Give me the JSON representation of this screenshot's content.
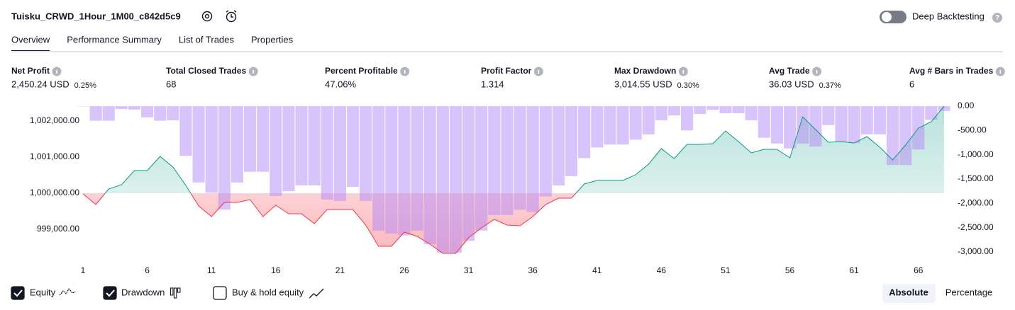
{
  "header": {
    "title": "Tuisku_CRWD_1Hour_1M00_c842d5c9",
    "deep_backtesting": "Deep Backtesting"
  },
  "tabs": [
    "Overview",
    "Performance Summary",
    "List of Trades",
    "Properties"
  ],
  "metrics": [
    {
      "label": "Net Profit",
      "value": "2,450.24 USD",
      "percent": "0.25%",
      "color": "#089981"
    },
    {
      "label": "Total Closed Trades",
      "value": "68",
      "color": "#131722"
    },
    {
      "label": "Percent Profitable",
      "value": "47.06%",
      "color": "#089981"
    },
    {
      "label": "Profit Factor",
      "value": "1.314",
      "color": "#089981"
    },
    {
      "label": "Max Drawdown",
      "value": "3,014.55 USD",
      "percent": "0.30%",
      "color": "#f23645"
    },
    {
      "label": "Avg Trade",
      "value": "36.03 USD",
      "percent": "0.37%",
      "color": "#089981"
    },
    {
      "label": "Avg # Bars in Trades",
      "value": "6",
      "color": "#131722"
    }
  ],
  "chart_data": {
    "type": "combo",
    "x": [
      1,
      2,
      3,
      4,
      5,
      6,
      7,
      8,
      9,
      10,
      11,
      12,
      13,
      14,
      15,
      16,
      17,
      18,
      19,
      20,
      21,
      22,
      23,
      24,
      25,
      26,
      27,
      28,
      29,
      30,
      31,
      32,
      33,
      34,
      35,
      36,
      37,
      38,
      39,
      40,
      41,
      42,
      43,
      44,
      45,
      46,
      47,
      48,
      49,
      50,
      51,
      52,
      53,
      54,
      55,
      56,
      57,
      58,
      59,
      60,
      61,
      62,
      63,
      64,
      65,
      66,
      67,
      68
    ],
    "series": [
      {
        "name": "Equity",
        "color": "#089981",
        "negative_color": "#f23645",
        "values": [
          999980,
          999686,
          1000118,
          1000235,
          1000627,
          1000627,
          1001020,
          1000725,
          1000216,
          999647,
          999353,
          999745,
          999745,
          999824,
          999353,
          999667,
          999431,
          999431,
          999157,
          999549,
          999549,
          999549,
          999118,
          998529,
          998529,
          998922,
          998804,
          998588,
          998333,
          998333,
          998765,
          999039,
          999274,
          999118,
          999098,
          999353,
          999686,
          999863,
          999863,
          1000255,
          1000353,
          1000353,
          1000353,
          1000510,
          1000804,
          1001235,
          1000961,
          1001353,
          1001353,
          1001373,
          1001725,
          1001431,
          1001118,
          1001216,
          1001216,
          1000980,
          1002118,
          1001765,
          1001412,
          1001431,
          1001392,
          1001569,
          1001275,
          1000922,
          1001333,
          1001804,
          1001980,
          1002412
        ]
      },
      {
        "name": "Drawdown",
        "color": "#b388f8",
        "axis": "y2",
        "values": [
          -5,
          -300,
          -300,
          -60,
          -70,
          -230,
          -300,
          -290,
          -1020,
          -1570,
          -1780,
          -2130,
          -1570,
          -1350,
          -1350,
          -1850,
          -1750,
          -1630,
          -1630,
          -1920,
          -1950,
          -1660,
          -1950,
          -2560,
          -2620,
          -2660,
          -2560,
          -2840,
          -3015,
          -3015,
          -2770,
          -2560,
          -2240,
          -2240,
          -2130,
          -2180,
          -1860,
          -1630,
          -1440,
          -1070,
          -850,
          -790,
          -790,
          -690,
          -580,
          -290,
          -190,
          -500,
          -160,
          -75,
          -145,
          -145,
          -290,
          -650,
          -770,
          -870,
          -770,
          -830,
          -390,
          -730,
          -760,
          -580,
          -580,
          -1210,
          -1210,
          -890,
          -280,
          -100
        ]
      }
    ],
    "xlim": [
      1,
      68
    ],
    "xticks": [
      1,
      6,
      11,
      16,
      21,
      26,
      31,
      36,
      41,
      46,
      51,
      56,
      61,
      66
    ],
    "ylim": [
      998333,
      1002412
    ],
    "yticks": [
      {
        "value": 999000,
        "label": "999,000.00"
      },
      {
        "value": 1000000,
        "label": "1,000,000.00"
      },
      {
        "value": 1001000,
        "label": "1,001,000.00"
      },
      {
        "value": 1002000,
        "label": "1,002,000.00"
      }
    ],
    "y2lim": [
      -3029,
      0
    ],
    "y2ticks": [
      {
        "value": 0,
        "label": "0.00"
      },
      {
        "value": -500,
        "label": "-500.00"
      },
      {
        "value": -1000,
        "label": "-1,000.00"
      },
      {
        "value": -1500,
        "label": "-1,500.00"
      },
      {
        "value": -2000,
        "label": "-2,000.00"
      },
      {
        "value": -2500,
        "label": "-2,500.00"
      },
      {
        "value": -3000,
        "label": "-3,000.00"
      }
    ]
  },
  "buy_hold_label": "Buy & hold equity",
  "view_options": [
    "Absolute",
    "Percentage"
  ]
}
